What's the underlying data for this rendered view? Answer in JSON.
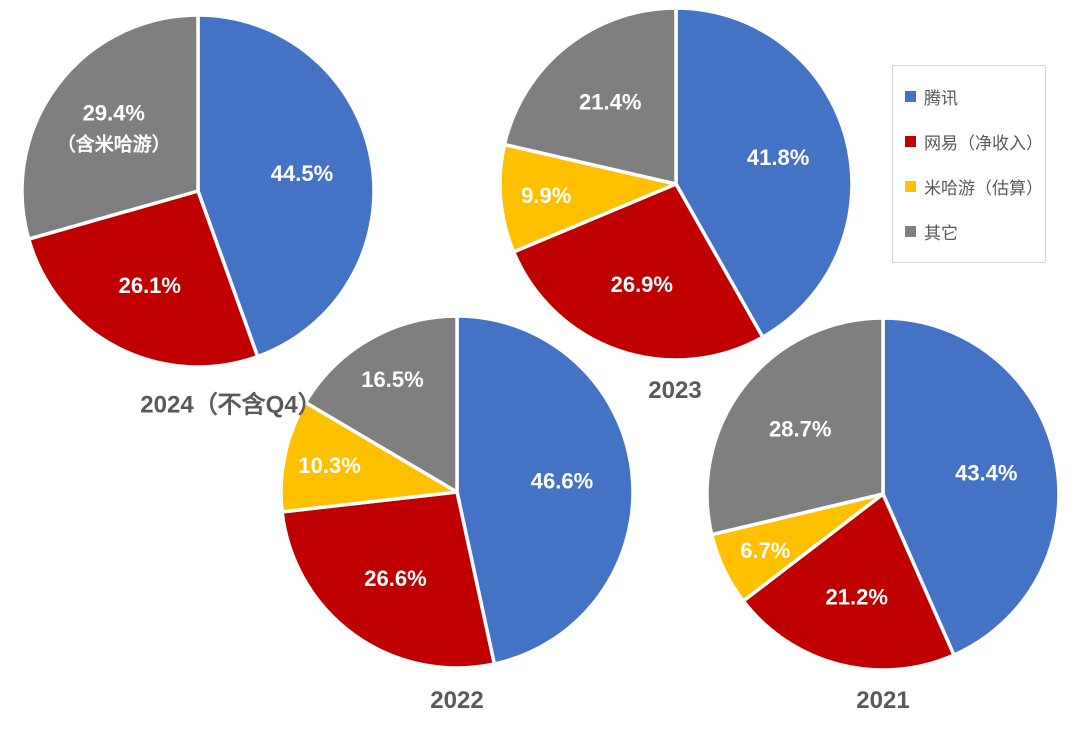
{
  "background_color": "#ffffff",
  "accent_colors": {
    "tencent_blue": "#4472C4",
    "netease_red": "#C00000",
    "mihoyo_yellow": "#FFC000",
    "others_gray": "#7F7F7F",
    "title_gray": "#595959",
    "slice_border_white": "#FFFFFF"
  },
  "legend": {
    "position": "right-top",
    "items": [
      {
        "id": "tencent",
        "label": "腾讯",
        "color": "#4472C4"
      },
      {
        "id": "netease",
        "label": "网易（净收入）",
        "color": "#C00000"
      },
      {
        "id": "mihoyo",
        "label": "米哈游（估算）",
        "color": "#FFC000"
      },
      {
        "id": "others",
        "label": "其它",
        "color": "#7F7F7F"
      }
    ]
  },
  "chart_data": [
    {
      "type": "pie",
      "title": "2024（不含Q4）",
      "start_angle_deg": 0,
      "direction": "clockwise",
      "label_format": "percent",
      "slices": [
        {
          "id": "tencent",
          "name": "腾讯",
          "value": 44.5,
          "label": "44.5%",
          "color": "#4472C4"
        },
        {
          "id": "netease",
          "name": "网易（净收入）",
          "value": 26.1,
          "label": "26.1%",
          "color": "#C00000"
        },
        {
          "id": "others",
          "name": "其它",
          "value": 29.4,
          "label": "29.4%",
          "sublabel": "（含米哈游）",
          "color": "#7F7F7F"
        }
      ]
    },
    {
      "type": "pie",
      "title": "2023",
      "start_angle_deg": 0,
      "direction": "clockwise",
      "label_format": "percent",
      "slices": [
        {
          "id": "tencent",
          "name": "腾讯",
          "value": 41.8,
          "label": "41.8%",
          "color": "#4472C4"
        },
        {
          "id": "netease",
          "name": "网易（净收入）",
          "value": 26.9,
          "label": "26.9%",
          "color": "#C00000"
        },
        {
          "id": "mihoyo",
          "name": "米哈游（估算）",
          "value": 9.9,
          "label": "9.9%",
          "color": "#FFC000"
        },
        {
          "id": "others",
          "name": "其它",
          "value": 21.4,
          "label": "21.4%",
          "color": "#7F7F7F"
        }
      ]
    },
    {
      "type": "pie",
      "title": "2022",
      "start_angle_deg": 0,
      "direction": "clockwise",
      "label_format": "percent",
      "slices": [
        {
          "id": "tencent",
          "name": "腾讯",
          "value": 46.6,
          "label": "46.6%",
          "color": "#4472C4"
        },
        {
          "id": "netease",
          "name": "网易（净收入）",
          "value": 26.6,
          "label": "26.6%",
          "color": "#C00000"
        },
        {
          "id": "mihoyo",
          "name": "米哈游（估算）",
          "value": 10.3,
          "label": "10.3%",
          "color": "#FFC000"
        },
        {
          "id": "others",
          "name": "其它",
          "value": 16.5,
          "label": "16.5%",
          "color": "#7F7F7F"
        }
      ]
    },
    {
      "type": "pie",
      "title": "2021",
      "start_angle_deg": 0,
      "direction": "clockwise",
      "label_format": "percent",
      "slices": [
        {
          "id": "tencent",
          "name": "腾讯",
          "value": 43.4,
          "label": "43.4%",
          "color": "#4472C4"
        },
        {
          "id": "netease",
          "name": "网易（净收入）",
          "value": 21.2,
          "label": "21.2%",
          "color": "#C00000"
        },
        {
          "id": "mihoyo",
          "name": "米哈游（估算）",
          "value": 6.7,
          "label": "6.7%",
          "color": "#FFC000"
        },
        {
          "id": "others",
          "name": "其它",
          "value": 28.7,
          "label": "28.7%",
          "color": "#7F7F7F"
        }
      ]
    }
  ]
}
